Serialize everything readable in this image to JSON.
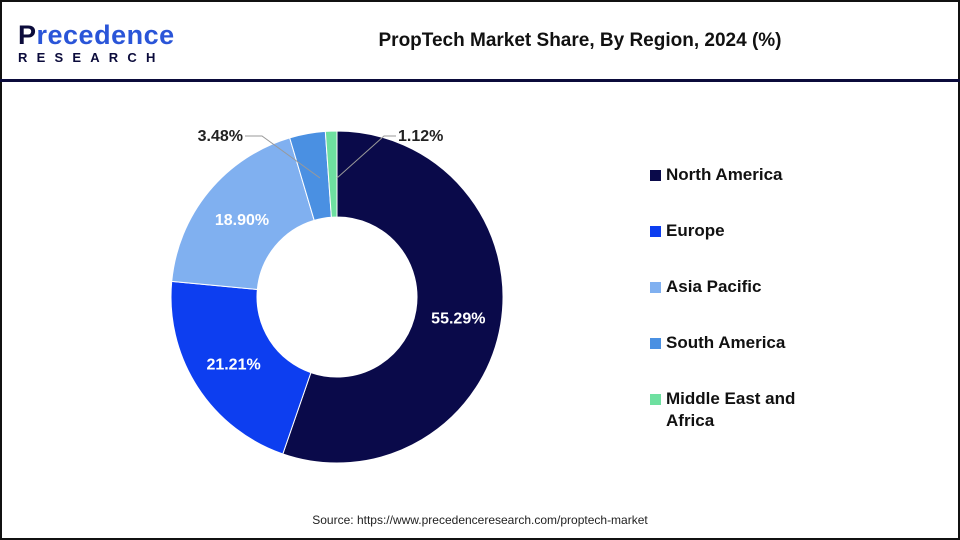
{
  "logo": {
    "line1_first": "P",
    "line1_rest": "recedence",
    "line2": "RESEARCH"
  },
  "title": "PropTech Market Share, By Region, 2024 (%)",
  "source": "Source: https://www.precedenceresearch.com/proptech-market",
  "chart_data": {
    "type": "pie",
    "variant": "donut",
    "title": "PropTech Market Share, By Region, 2024 (%)",
    "categories": [
      "North America",
      "Europe",
      "Asia Pacific",
      "South America",
      "Middle East and Africa"
    ],
    "values": [
      55.29,
      21.21,
      18.9,
      3.48,
      1.12
    ],
    "labels": [
      "55.29%",
      "21.21%",
      "18.90%",
      "3.48%",
      "1.12%"
    ],
    "colors": [
      "#0a0a4a",
      "#0d3ef0",
      "#80b0f0",
      "#4a90e2",
      "#6ee0a0"
    ],
    "start": "top, clockwise",
    "legend_position": "right"
  }
}
